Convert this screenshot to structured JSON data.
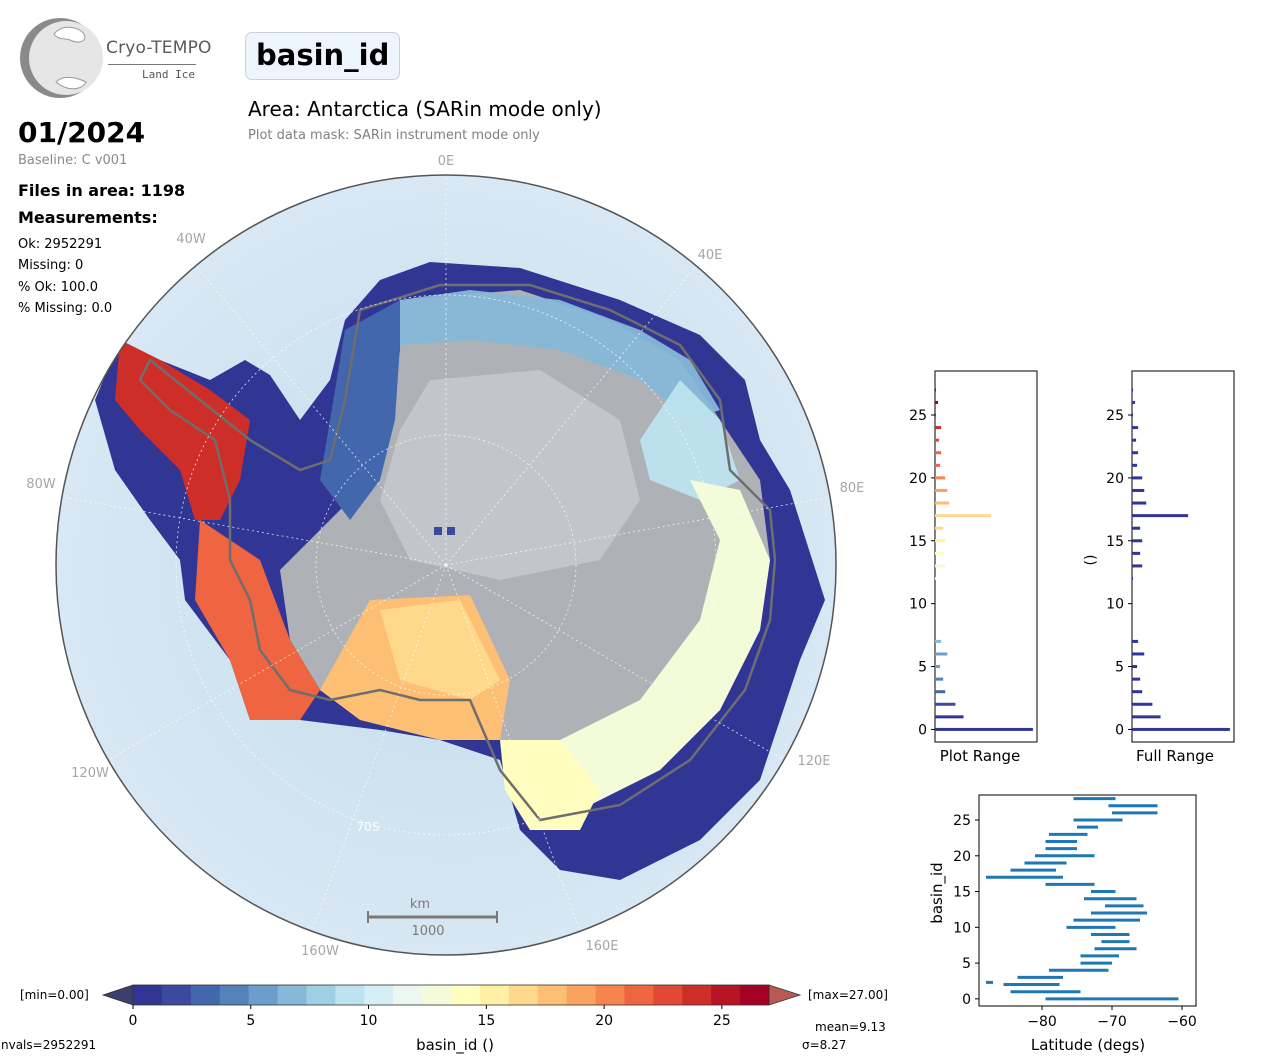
{
  "logo": {
    "title": "Cryo-TEMPO",
    "subtitle": "Land Ice"
  },
  "header": {
    "title": "basin_id",
    "area": "Area: Antarctica (SARin mode only)",
    "mask": "Plot data mask: SARin instrument mode only"
  },
  "info": {
    "date": "01/2024",
    "baseline": "Baseline: C v001",
    "files": "Files in area: 1198",
    "measurements_label": "Measurements:",
    "ok": "Ok: 2952291",
    "missing": "Missing: 0",
    "pct_ok": "% Ok: 100.0",
    "pct_missing": "% Missing: 0.0"
  },
  "map": {
    "lon_labels": [
      "0E",
      "40E",
      "80E",
      "120E",
      "160E",
      "160W",
      "120W",
      "80W",
      "40W"
    ],
    "lat_label": "70S",
    "scale_label_top": "km",
    "scale_label_bottom": "1000"
  },
  "colorbar": {
    "min_label": "[min=0.00]",
    "max_label": "[max=27.00]",
    "label": "basin_id ()",
    "ticks": [
      "0",
      "5",
      "10",
      "15",
      "20",
      "25"
    ],
    "nvals": "nvals=2952291",
    "mean": "mean=9.13",
    "sigma": "σ=8.27",
    "colors": [
      "#313695",
      "#3b4a9e",
      "#4367ad",
      "#5483bc",
      "#6b9ecb",
      "#86b8d8",
      "#a0cfe4",
      "#bde3ef",
      "#d6eef5",
      "#ebf7f0",
      "#f4fbd9",
      "#fffebe",
      "#fef0a7",
      "#fed98b",
      "#fdbf73",
      "#fca25f",
      "#f7834f",
      "#ef6441",
      "#e14934",
      "#cd2f28",
      "#b71426",
      "#a50026"
    ],
    "under_color": "#3a3f6e",
    "over_color": "#b85a52"
  },
  "chart_data": [
    {
      "type": "bar",
      "orientation": "horizontal",
      "xlabel": "Plot Range",
      "ylabel": "",
      "ylim": [
        -1,
        28.5
      ],
      "yticks": [
        "0",
        "5",
        "10",
        "15",
        "20",
        "25"
      ],
      "categories": [
        0,
        1,
        2,
        3,
        4,
        5,
        6,
        7,
        8,
        9,
        10,
        11,
        12,
        13,
        14,
        15,
        16,
        17,
        18,
        19,
        20,
        21,
        22,
        23,
        24,
        25,
        26,
        27
      ],
      "values": [
        96,
        28,
        20,
        10,
        8,
        5,
        12,
        6,
        0,
        0,
        0,
        0,
        1,
        10,
        8,
        10,
        8,
        55,
        14,
        12,
        10,
        5,
        6,
        4,
        6,
        1,
        3,
        1
      ]
    },
    {
      "type": "bar",
      "orientation": "horizontal",
      "xlabel": "Full Range",
      "ylabel": "()",
      "ylim": [
        -1,
        28.5
      ],
      "yticks": [
        "0",
        "5",
        "10",
        "15",
        "20",
        "25"
      ],
      "categories": [
        0,
        1,
        2,
        3,
        4,
        5,
        6,
        7,
        8,
        9,
        10,
        11,
        12,
        13,
        14,
        15,
        16,
        17,
        18,
        19,
        20,
        21,
        22,
        23,
        24,
        25,
        26,
        27
      ],
      "values": [
        96,
        28,
        20,
        10,
        8,
        5,
        12,
        6,
        0,
        0,
        0,
        0,
        1,
        10,
        8,
        10,
        8,
        55,
        14,
        12,
        10,
        5,
        6,
        4,
        6,
        1,
        3,
        1
      ]
    },
    {
      "type": "range-bar",
      "xlabel": "Latitude (degs)",
      "ylabel": "basin_id",
      "xlim": [
        -89,
        -58
      ],
      "ylim": [
        -1,
        28.5
      ],
      "xticks": [
        "−80",
        "−70",
        "−60"
      ],
      "yticks": [
        "0",
        "5",
        "10",
        "15",
        "20",
        "25"
      ],
      "ranges": [
        {
          "id": 0,
          "min": -79.5,
          "max": -60.5
        },
        {
          "id": 1,
          "min": -84.5,
          "max": -74.5
        },
        {
          "id": 2,
          "min": -85.5,
          "max": -77.5
        },
        {
          "id": 2.3,
          "min": -88.0,
          "max": -87.0
        },
        {
          "id": 3,
          "min": -83.5,
          "max": -77.0
        },
        {
          "id": 4,
          "min": -79.0,
          "max": -70.5
        },
        {
          "id": 5,
          "min": -74.5,
          "max": -70.0
        },
        {
          "id": 6,
          "min": -74.5,
          "max": -69.0
        },
        {
          "id": 7,
          "min": -72.5,
          "max": -66.5
        },
        {
          "id": 8,
          "min": -71.5,
          "max": -67.5
        },
        {
          "id": 9,
          "min": -73.0,
          "max": -67.5
        },
        {
          "id": 10,
          "min": -76.5,
          "max": -69.5
        },
        {
          "id": 11,
          "min": -75.5,
          "max": -66.0
        },
        {
          "id": 12,
          "min": -73.0,
          "max": -65.0
        },
        {
          "id": 13,
          "min": -71.0,
          "max": -65.5
        },
        {
          "id": 14,
          "min": -74.0,
          "max": -66.5
        },
        {
          "id": 15,
          "min": -73.0,
          "max": -69.5
        },
        {
          "id": 16,
          "min": -79.5,
          "max": -72.5
        },
        {
          "id": 17,
          "min": -88.0,
          "max": -77.0
        },
        {
          "id": 18,
          "min": -84.5,
          "max": -78.0
        },
        {
          "id": 19,
          "min": -82.5,
          "max": -76.5
        },
        {
          "id": 20,
          "min": -81.0,
          "max": -72.5
        },
        {
          "id": 21,
          "min": -79.5,
          "max": -75.0
        },
        {
          "id": 22,
          "min": -79.5,
          "max": -75.0
        },
        {
          "id": 23,
          "min": -79.0,
          "max": -73.5
        },
        {
          "id": 24,
          "min": -75.0,
          "max": -72.0
        },
        {
          "id": 25,
          "min": -75.5,
          "max": -68.5
        },
        {
          "id": 26,
          "min": -70.0,
          "max": -63.5
        },
        {
          "id": 27,
          "min": -70.5,
          "max": -63.5
        },
        {
          "id": 28,
          "min": -75.5,
          "max": -69.5
        }
      ]
    }
  ]
}
